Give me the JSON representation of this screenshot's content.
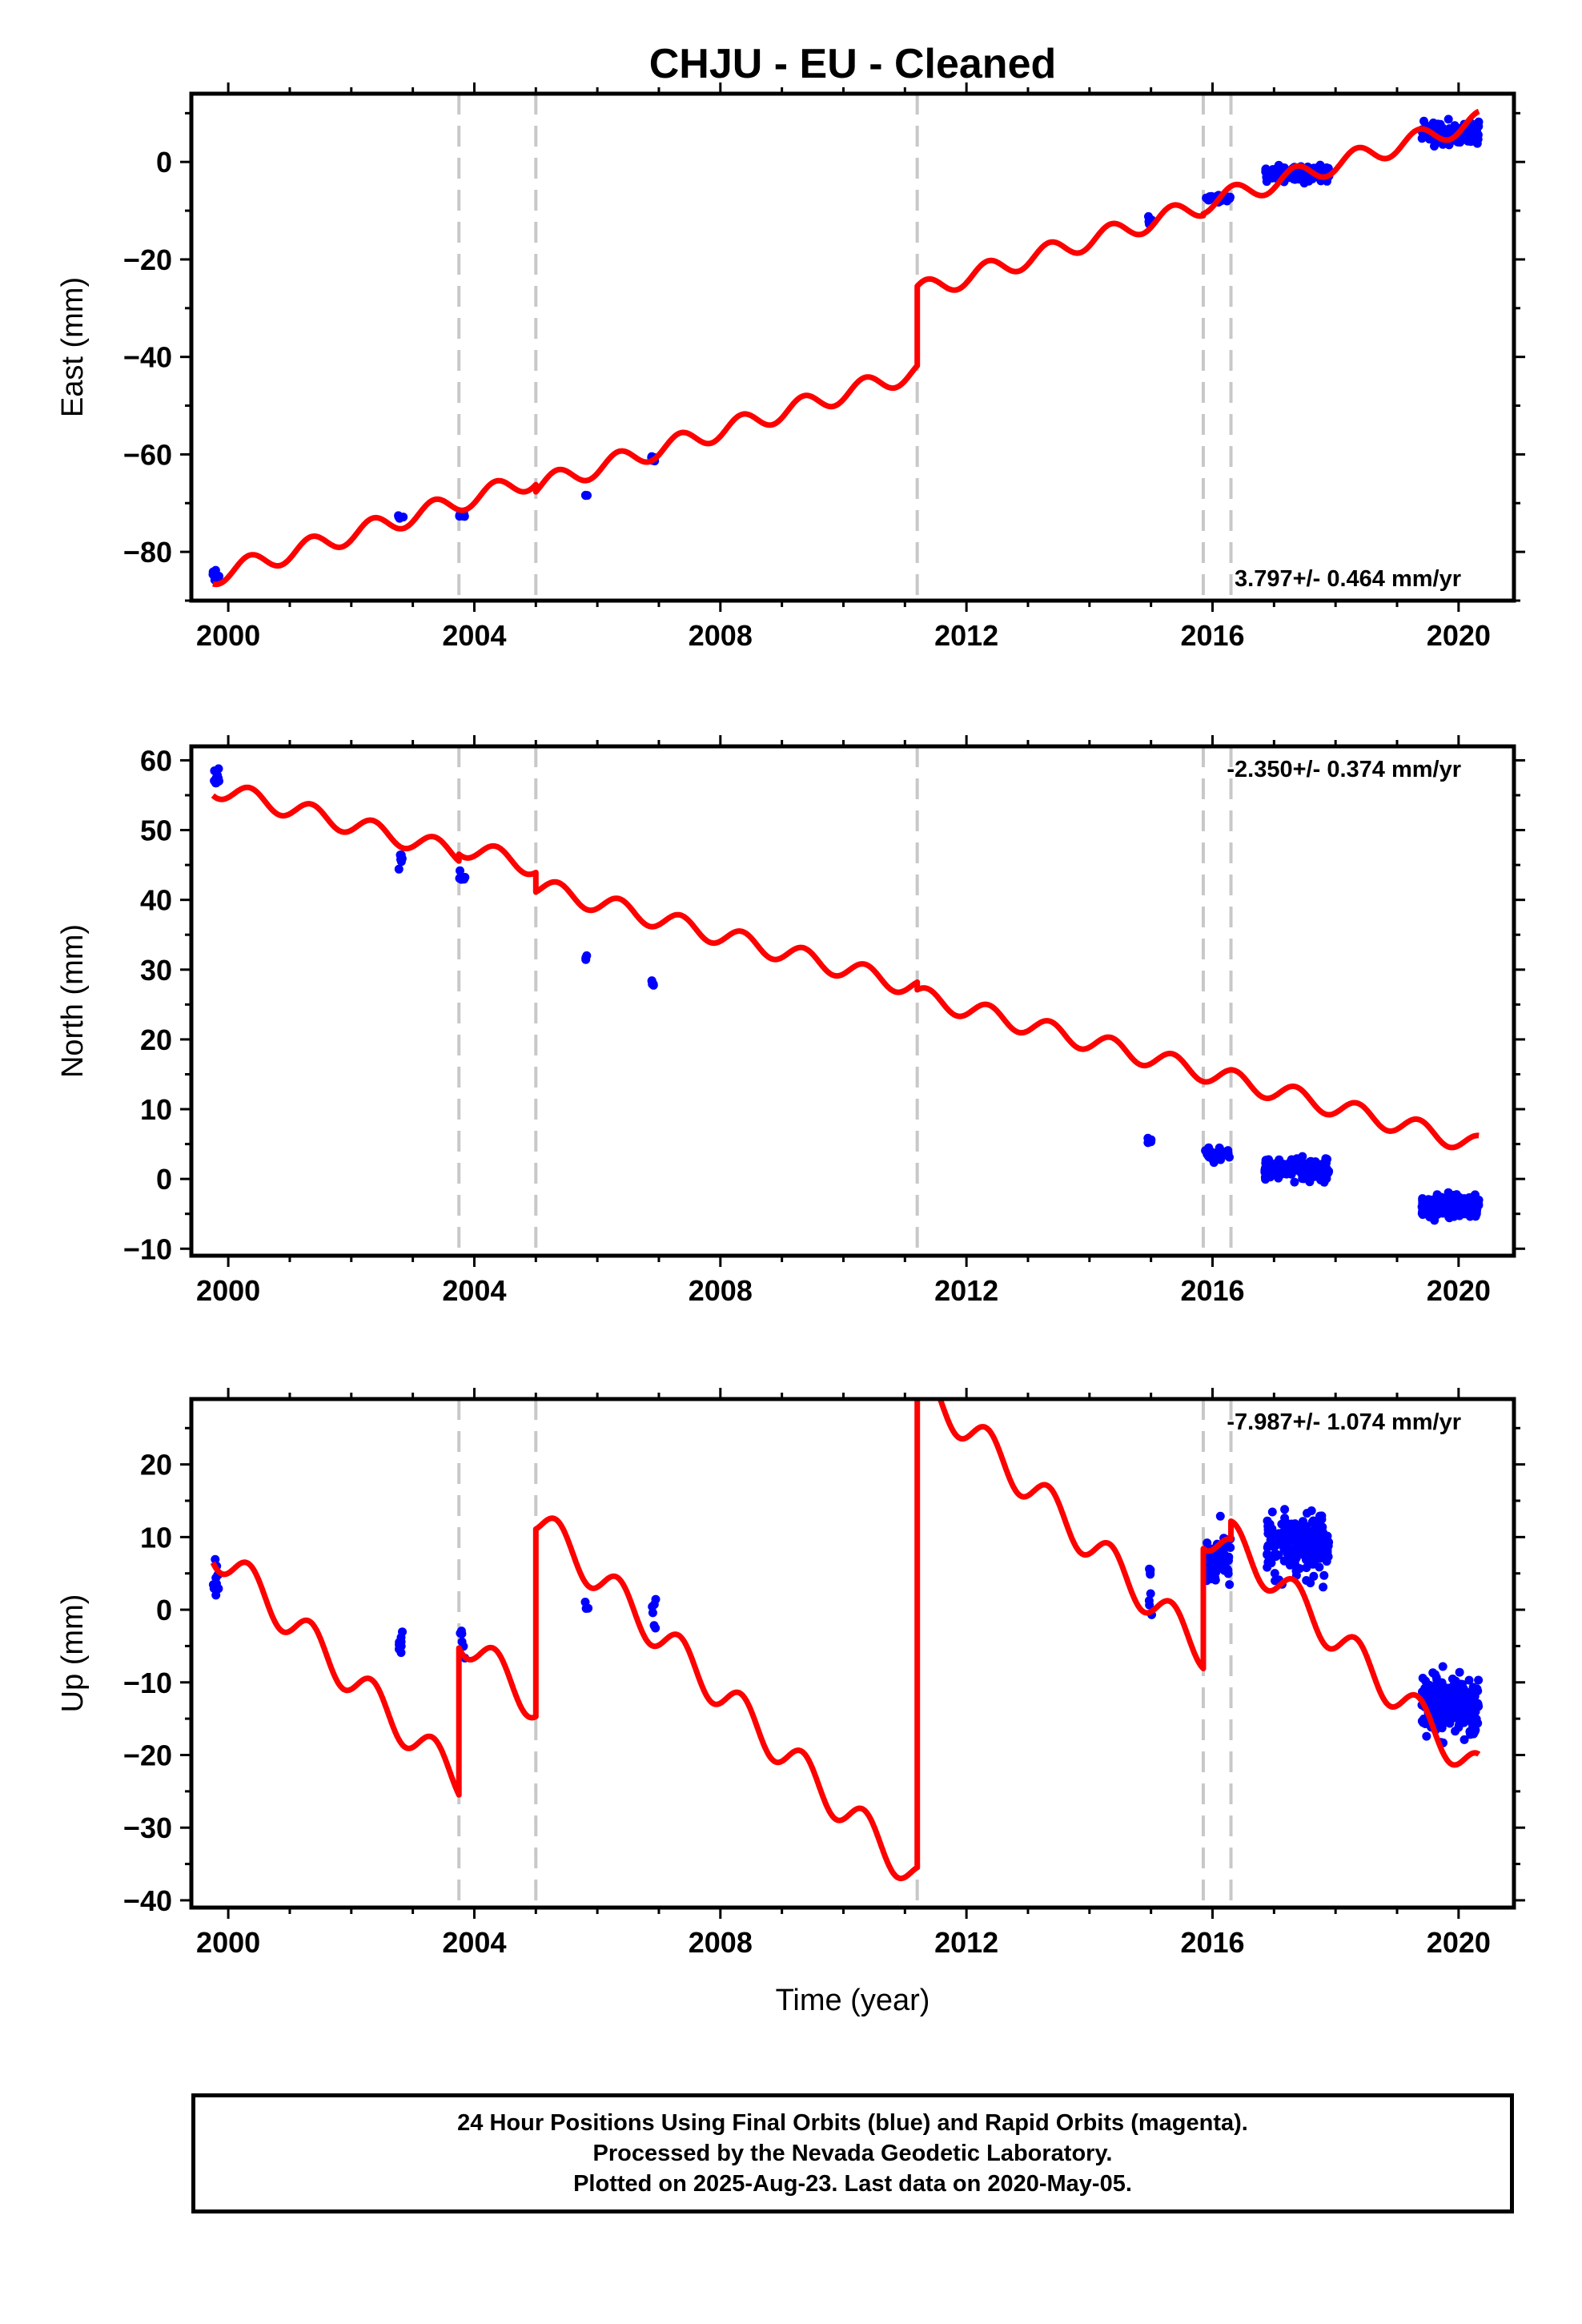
{
  "title": "CHJU  - EU - Cleaned",
  "footer": {
    "line1": "24 Hour Positions Using Final Orbits (blue) and Rapid Orbits (magenta).",
    "line2": "Processed by the Nevada Geodetic Laboratory.",
    "line3": "Plotted on 2025-Aug-23. Last data on 2020-May-05."
  },
  "colors": {
    "data": "#0000ff",
    "model": "#ff0000",
    "breaks": "#c8c8c8",
    "frame": "#000000"
  },
  "chart_data": [
    {
      "type": "scatter",
      "component": "east",
      "ylabel": "East (mm)",
      "xlabel": "",
      "rate_text": "3.797+/- 0.464 mm/yr",
      "xlim": [
        1999.4,
        2020.9
      ],
      "ylim": [
        -90,
        14
      ],
      "xticks": [
        2000,
        2004,
        2008,
        2012,
        2016,
        2020
      ],
      "xtick_labels": [
        "2000",
        "2004",
        "2008",
        "2012",
        "2016",
        "2020"
      ],
      "yticks": [
        -80,
        -60,
        -40,
        -20,
        0
      ],
      "ytick_labels": [
        "−80",
        "−60",
        "−40",
        "−20",
        "0"
      ],
      "breaks": [
        2003.75,
        2005.0,
        2011.2,
        2015.85,
        2016.3
      ],
      "model": {
        "rate": 3.797,
        "amplitude": 2.0,
        "segments": [
          {
            "start": 1999.75,
            "end": 2005.0,
            "offset": -84.0
          },
          {
            "start": 2005.0,
            "end": 2011.2,
            "offset": -85.5
          },
          {
            "start": 2011.2,
            "end": 2015.85,
            "offset": -69.2
          },
          {
            "start": 2015.85,
            "end": 2020.33,
            "offset": -68.8
          }
        ]
      },
      "clusters": [
        {
          "t0": 1999.75,
          "t1": 1999.85,
          "center": -84.8,
          "spread": 2.0,
          "n": 8
        },
        {
          "t0": 2002.75,
          "t1": 2002.85,
          "center": -73.2,
          "spread": 1.0,
          "n": 6
        },
        {
          "t0": 2003.75,
          "t1": 2003.85,
          "center": -72.8,
          "spread": 1.0,
          "n": 6
        },
        {
          "t0": 2005.8,
          "t1": 2005.85,
          "center": -68.5,
          "spread": 0.5,
          "n": 3
        },
        {
          "t0": 2006.85,
          "t1": 2006.95,
          "center": -61.0,
          "spread": 1.5,
          "n": 7
        },
        {
          "t0": 2014.95,
          "t1": 2015.02,
          "center": -11.5,
          "spread": 1.5,
          "n": 6
        },
        {
          "t0": 2015.88,
          "t1": 2016.3,
          "center": -7.5,
          "spread": 1.0,
          "n": 30
        },
        {
          "t0": 2016.85,
          "t1": 2017.9,
          "center": -2.5,
          "spread": 2.0,
          "n": 160
        },
        {
          "t0": 2019.4,
          "t1": 2020.33,
          "center": 6.0,
          "spread": 2.5,
          "n": 200
        }
      ]
    },
    {
      "type": "scatter",
      "component": "north",
      "ylabel": "North (mm)",
      "xlabel": "",
      "rate_text": "-2.350+/- 0.374 mm/yr",
      "xlim": [
        1999.4,
        2020.9
      ],
      "ylim": [
        -11,
        62
      ],
      "xticks": [
        2000,
        2004,
        2008,
        2012,
        2016,
        2020
      ],
      "xtick_labels": [
        "2000",
        "2004",
        "2008",
        "2012",
        "2016",
        "2020"
      ],
      "yticks": [
        -10,
        0,
        10,
        20,
        30,
        40,
        50,
        60
      ],
      "ytick_labels": [
        "−10",
        "0",
        "10",
        "20",
        "30",
        "40",
        "50",
        "60"
      ],
      "breaks": [
        2003.75,
        2005.0,
        2011.2,
        2015.85,
        2016.3
      ],
      "model": {
        "rate": -2.35,
        "amplitude": 1.4,
        "segments": [
          {
            "start": 1999.75,
            "end": 2003.75,
            "offset": 55.5
          },
          {
            "start": 2003.75,
            "end": 2005.0,
            "offset": 56.5
          },
          {
            "start": 2005.0,
            "end": 2011.2,
            "offset": 53.7
          },
          {
            "start": 2011.2,
            "end": 2020.33,
            "offset": 52.6
          }
        ]
      },
      "clusters": [
        {
          "t0": 1999.75,
          "t1": 1999.85,
          "center": 57.5,
          "spread": 2.0,
          "n": 10
        },
        {
          "t0": 2002.75,
          "t1": 2002.85,
          "center": 45.5,
          "spread": 1.5,
          "n": 6
        },
        {
          "t0": 2003.75,
          "t1": 2003.85,
          "center": 43.5,
          "spread": 1.0,
          "n": 6
        },
        {
          "t0": 2005.8,
          "t1": 2005.85,
          "center": 31.5,
          "spread": 0.5,
          "n": 3
        },
        {
          "t0": 2006.85,
          "t1": 2006.95,
          "center": 28.0,
          "spread": 0.8,
          "n": 6
        },
        {
          "t0": 2014.95,
          "t1": 2015.02,
          "center": 5.5,
          "spread": 0.8,
          "n": 6
        },
        {
          "t0": 2015.88,
          "t1": 2016.3,
          "center": 3.5,
          "spread": 1.2,
          "n": 40
        },
        {
          "t0": 2016.85,
          "t1": 2017.9,
          "center": 1.5,
          "spread": 1.8,
          "n": 180
        },
        {
          "t0": 2019.4,
          "t1": 2020.33,
          "center": -4.0,
          "spread": 1.8,
          "n": 220
        }
      ]
    },
    {
      "type": "scatter",
      "component": "up",
      "ylabel": "Up (mm)",
      "xlabel": "Time (year)",
      "rate_text": "-7.987+/- 1.074 mm/yr",
      "xlim": [
        1999.4,
        2020.9
      ],
      "ylim": [
        -41,
        29
      ],
      "xticks": [
        2000,
        2004,
        2008,
        2012,
        2016,
        2020
      ],
      "xtick_labels": [
        "2000",
        "2004",
        "2008",
        "2012",
        "2016",
        "2020"
      ],
      "yticks": [
        -40,
        -30,
        -20,
        -10,
        0,
        10,
        20
      ],
      "ytick_labels": [
        "−40",
        "−30",
        "−20",
        "−10",
        "0",
        "10",
        "20"
      ],
      "breaks": [
        2003.75,
        2005.0,
        2011.2,
        2015.85,
        2016.3
      ],
      "model": {
        "rate": -7.987,
        "amplitude": 2.5,
        "segments": [
          {
            "start": 1999.75,
            "end": 2003.75,
            "offset": 6.5
          },
          {
            "start": 2003.75,
            "end": 2005.0,
            "offset": 26.7
          },
          {
            "start": 2005.0,
            "end": 2011.2,
            "offset": 52.5
          },
          {
            "start": 2011.2,
            "end": 2015.85,
            "offset": 121.0
          },
          {
            "start": 2015.85,
            "end": 2016.3,
            "offset": 137.5
          },
          {
            "start": 2016.3,
            "end": 2020.33,
            "offset": 140.0
          }
        ]
      },
      "clusters": [
        {
          "t0": 1999.75,
          "t1": 1999.85,
          "center": 4.0,
          "spread": 4.0,
          "n": 10
        },
        {
          "t0": 2002.75,
          "t1": 2002.85,
          "center": -5.0,
          "spread": 3.0,
          "n": 8
        },
        {
          "t0": 2003.75,
          "t1": 2003.85,
          "center": -4.5,
          "spread": 3.0,
          "n": 6
        },
        {
          "t0": 2005.8,
          "t1": 2005.85,
          "center": 1.0,
          "spread": 3.0,
          "n": 3
        },
        {
          "t0": 2006.85,
          "t1": 2006.95,
          "center": -1.0,
          "spread": 5.0,
          "n": 6
        },
        {
          "t0": 2014.95,
          "t1": 2015.02,
          "center": 4.0,
          "spread": 5.0,
          "n": 8
        },
        {
          "t0": 2015.88,
          "t1": 2016.3,
          "center": 7.0,
          "spread": 5.0,
          "n": 50
        },
        {
          "t0": 2016.85,
          "t1": 2017.9,
          "center": 9.0,
          "spread": 5.0,
          "n": 200
        },
        {
          "t0": 2019.4,
          "t1": 2020.33,
          "center": -13.0,
          "spread": 4.5,
          "n": 250
        }
      ]
    }
  ]
}
